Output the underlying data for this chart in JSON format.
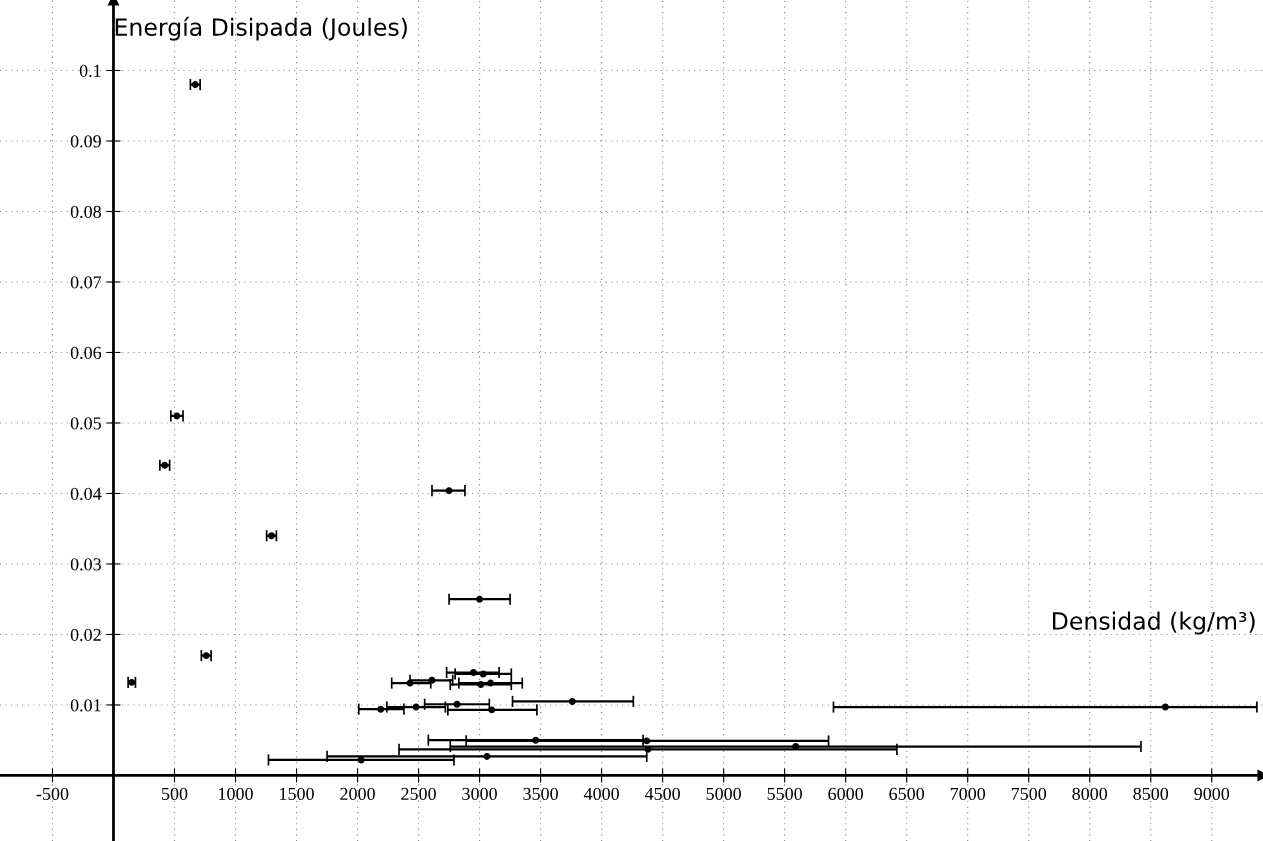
{
  "chart_data": {
    "type": "scatter",
    "xlabel": "Densidad (kg/m³)",
    "ylabel": "Energía Disipada (Joules)",
    "x": [
      670,
      520,
      420,
      1295,
      760,
      150,
      2750,
      3000,
      2950,
      3030,
      2430,
      2610,
      3010,
      3090,
      2190,
      2480,
      2815,
      3100,
      3760,
      8620,
      3460,
      4370,
      5590,
      4380,
      3060,
      2030
    ],
    "values": [
      0.098,
      0.051,
      0.044,
      0.034,
      0.017,
      0.0132,
      0.0404,
      0.025,
      0.0146,
      0.0144,
      0.0131,
      0.0135,
      0.0129,
      0.0131,
      0.0094,
      0.0097,
      0.0101,
      0.0093,
      0.0105,
      0.0097,
      0.005,
      0.0049,
      0.0041,
      0.0037,
      0.0027,
      0.0022
    ],
    "xerrors": [
      40,
      50,
      40,
      40,
      40,
      30,
      [
        2610,
        2880
      ],
      [
        2750,
        3250
      ],
      [
        2730,
        3160
      ],
      [
        2800,
        3260
      ],
      [
        2280,
        2600
      ],
      [
        2430,
        2780
      ],
      [
        2760,
        3260
      ],
      [
        2830,
        3350
      ],
      [
        2010,
        2380
      ],
      [
        2240,
        2720
      ],
      [
        2550,
        3080
      ],
      [
        2740,
        3470
      ],
      [
        3270,
        4260
      ],
      [
        5900,
        9370
      ],
      [
        2580,
        4340
      ],
      [
        2890,
        5860
      ],
      [
        2760,
        8420
      ],
      [
        2340,
        6420
      ],
      [
        1750,
        4370
      ],
      [
        1270,
        2790
      ]
    ],
    "color": "#000000",
    "marker": "circle",
    "grid": true,
    "xlim": [
      -930,
      9420
    ],
    "ylim": [
      -0.0093,
      0.11
    ],
    "xticks": [
      -500,
      500,
      1000,
      1500,
      2000,
      2500,
      3000,
      3500,
      4000,
      4500,
      5000,
      5500,
      6000,
      6500,
      7000,
      7500,
      8000,
      8500,
      9000
    ],
    "yticks": [
      0.01,
      0.02,
      0.03,
      0.04,
      0.05,
      0.06,
      0.07,
      0.08,
      0.09,
      0.1
    ]
  }
}
